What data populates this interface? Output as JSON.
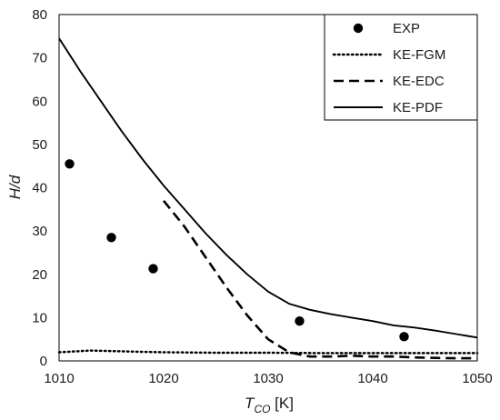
{
  "chart_data": {
    "type": "line",
    "title": "",
    "xlabel": {
      "main": "T",
      "sub": "CO",
      "unit": " [K]"
    },
    "ylabel": "H/d",
    "xlim": [
      1010,
      1050
    ],
    "ylim": [
      0,
      80
    ],
    "xticks": [
      1010,
      1020,
      1030,
      1040,
      1050
    ],
    "yticks": [
      0,
      10,
      20,
      30,
      40,
      50,
      60,
      70,
      80
    ],
    "grid": false,
    "legend_position": "top-right",
    "series": [
      {
        "name": "EXP",
        "style": "markers",
        "color": "#000000",
        "x": [
          1011,
          1015,
          1019,
          1033,
          1043
        ],
        "y": [
          45.5,
          28.5,
          21.3,
          9.2,
          5.6
        ]
      },
      {
        "name": "KE-FGM",
        "style": "dotted",
        "color": "#000000",
        "x": [
          1010,
          1013,
          1016,
          1020,
          1025,
          1030,
          1035,
          1040,
          1045,
          1050
        ],
        "y": [
          2.0,
          2.4,
          2.2,
          2.0,
          1.9,
          1.9,
          1.8,
          1.8,
          1.8,
          1.8
        ]
      },
      {
        "name": "KE-EDC",
        "style": "dashed",
        "color": "#000000",
        "x": [
          1020,
          1022,
          1024,
          1026,
          1028,
          1030,
          1032,
          1034,
          1036,
          1038,
          1040,
          1042,
          1044,
          1046,
          1048,
          1050
        ],
        "y": [
          37.0,
          31.0,
          24.0,
          17.0,
          10.5,
          5.0,
          2.0,
          1.0,
          1.0,
          1.2,
          1.0,
          1.0,
          0.8,
          0.7,
          0.6,
          0.6
        ]
      },
      {
        "name": "KE-PDF",
        "style": "solid",
        "color": "#000000",
        "x": [
          1010,
          1012,
          1014,
          1016,
          1018,
          1020,
          1022,
          1024,
          1026,
          1028,
          1030,
          1032,
          1034,
          1036,
          1038,
          1040,
          1042,
          1044,
          1046,
          1048,
          1050
        ],
        "y": [
          74.5,
          67.0,
          60.0,
          53.0,
          46.5,
          40.5,
          35.0,
          29.5,
          24.5,
          20.0,
          16.0,
          13.2,
          11.8,
          10.8,
          10.0,
          9.2,
          8.2,
          7.7,
          7.0,
          6.2,
          5.4
        ]
      }
    ]
  }
}
